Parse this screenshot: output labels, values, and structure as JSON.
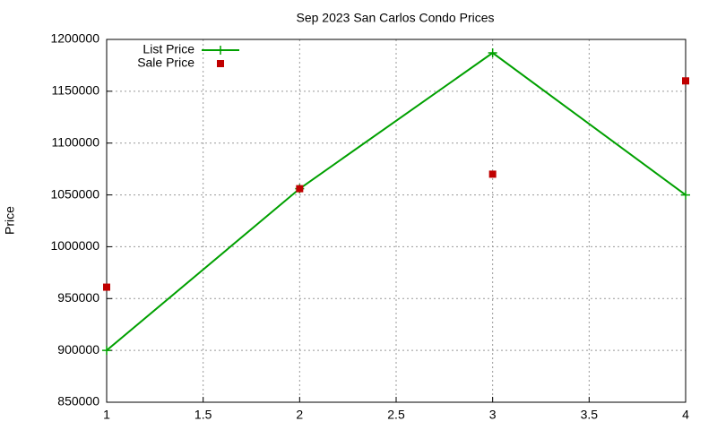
{
  "chart_data": {
    "type": "line",
    "title": "Sep 2023 San Carlos Condo Prices",
    "y_label": "Price",
    "x": [
      1,
      2,
      3,
      4
    ],
    "series": [
      {
        "name": "List Price",
        "color": "#00a000",
        "style": "linespoints",
        "values": [
          900000,
          1056000,
          1187000,
          1050000
        ]
      },
      {
        "name": "Sale Price",
        "color": "#c00000",
        "style": "points",
        "values": [
          961000,
          1056000,
          1070000,
          1160000
        ]
      }
    ],
    "xlim": [
      1,
      4
    ],
    "xticks": [
      1,
      1.5,
      2,
      2.5,
      3,
      3.5,
      4
    ],
    "ylim": [
      850000,
      1200000
    ],
    "yticks": [
      850000,
      900000,
      950000,
      1000000,
      1050000,
      1100000,
      1150000,
      1200000
    ],
    "grid": true,
    "legend": "top-left"
  }
}
